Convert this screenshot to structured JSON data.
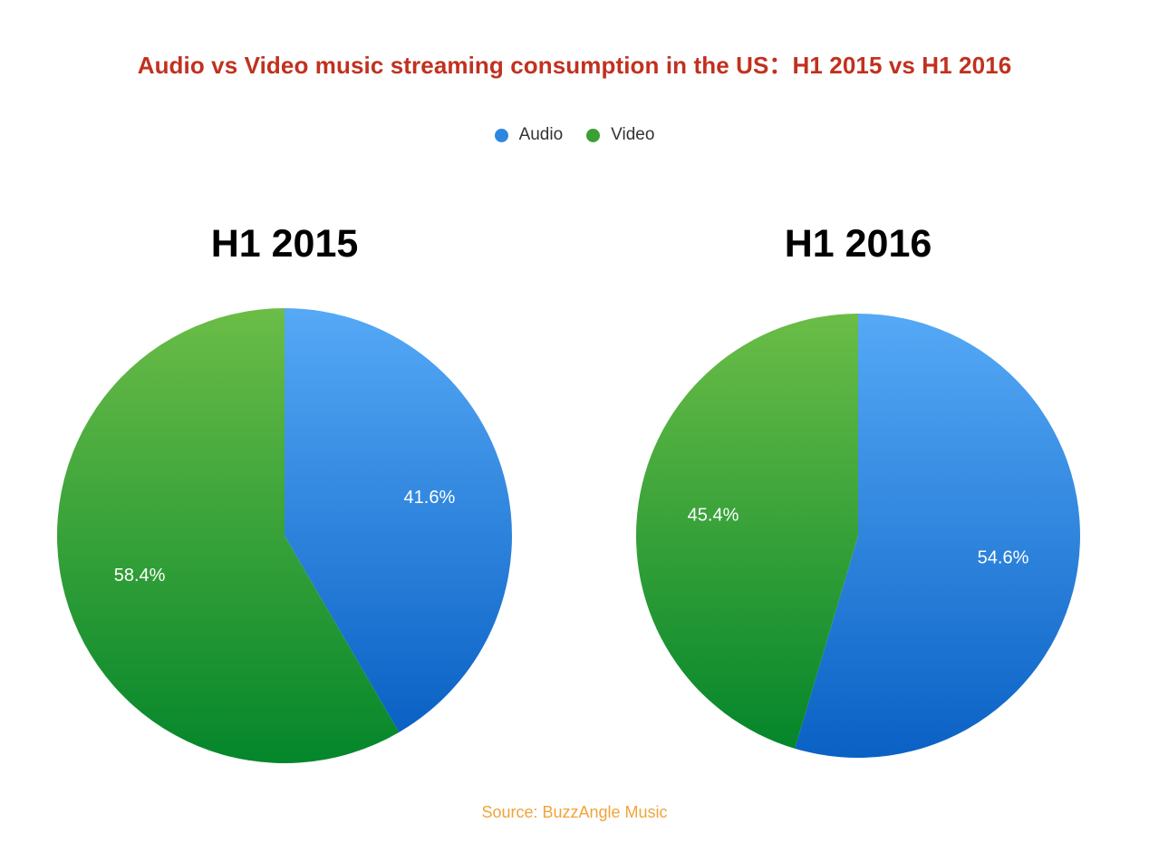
{
  "title": "Audio vs Video music streaming consumption in the US：H1 2015 vs H1 2016",
  "legend": [
    {
      "label": "Audio",
      "color": "#2e86e0"
    },
    {
      "label": "Video",
      "color": "#3aa033"
    }
  ],
  "source": "Source: BuzzAngle Music",
  "chart_data": [
    {
      "type": "pie",
      "title": "H1 2015",
      "slices": [
        {
          "name": "Audio",
          "value": 41.6,
          "label": "41.6%"
        },
        {
          "name": "Video",
          "value": 58.4,
          "label": "58.4%"
        }
      ]
    },
    {
      "type": "pie",
      "title": "H1 2016",
      "slices": [
        {
          "name": "Audio",
          "value": 54.6,
          "label": "54.6%"
        },
        {
          "name": "Video",
          "value": 45.4,
          "label": "45.4%"
        }
      ]
    }
  ]
}
